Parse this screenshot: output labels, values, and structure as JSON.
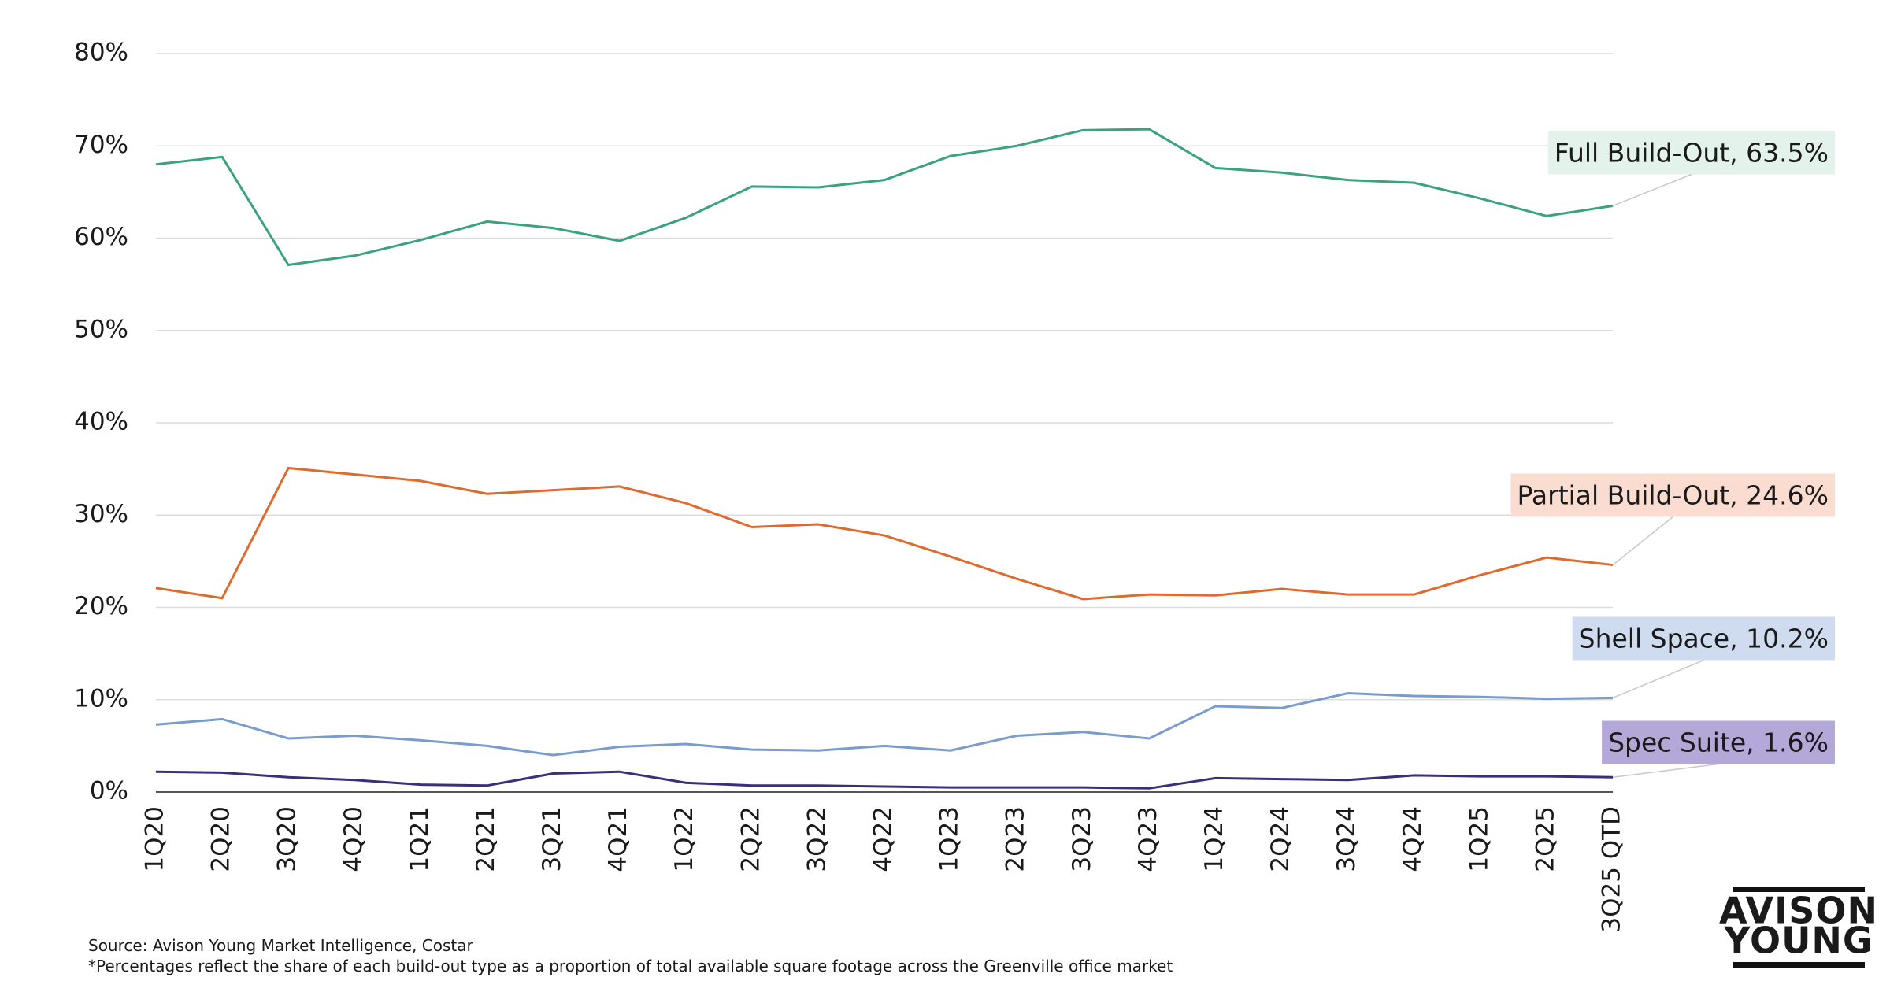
{
  "chart_data": {
    "type": "line",
    "categories": [
      "1Q20",
      "2Q20",
      "3Q20",
      "4Q20",
      "1Q21",
      "2Q21",
      "3Q21",
      "4Q21",
      "1Q22",
      "2Q22",
      "3Q22",
      "4Q22",
      "1Q23",
      "2Q23",
      "3Q23",
      "4Q23",
      "1Q24",
      "2Q24",
      "3Q24",
      "4Q24",
      "1Q25",
      "2Q25",
      "3Q25 QTD"
    ],
    "ylim": [
      0,
      80
    ],
    "yticks": [
      {
        "value": 0,
        "label": "0%"
      },
      {
        "value": 10,
        "label": "10%"
      },
      {
        "value": 20,
        "label": "20%"
      },
      {
        "value": 30,
        "label": "30%"
      },
      {
        "value": 40,
        "label": "40%"
      },
      {
        "value": 50,
        "label": "50%"
      },
      {
        "value": 60,
        "label": "60%"
      },
      {
        "value": 70,
        "label": "70%"
      },
      {
        "value": 80,
        "label": "80%"
      }
    ],
    "grid": true,
    "series": [
      {
        "label": "Full Build-Out, 63.5%",
        "color": "#3aa37e",
        "label_background": "#e3f3ec",
        "values": [
          68.0,
          68.8,
          57.1,
          58.1,
          59.8,
          61.8,
          61.1,
          59.7,
          62.2,
          65.6,
          65.5,
          66.3,
          68.9,
          70.0,
          71.7,
          71.8,
          67.6,
          67.1,
          66.3,
          66.0,
          64.3,
          62.4,
          63.5
        ]
      },
      {
        "label": "Partial Build-Out, 24.6%",
        "color": "#e06a2e",
        "label_background": "#fbdcd0",
        "values": [
          22.1,
          21.0,
          35.1,
          34.4,
          33.7,
          32.3,
          32.7,
          33.1,
          31.3,
          28.7,
          29.0,
          27.8,
          25.5,
          23.1,
          20.9,
          21.4,
          21.3,
          22.0,
          21.4,
          21.4,
          23.5,
          25.4,
          24.6
        ]
      },
      {
        "label": "Shell Space, 10.2%",
        "color": "#7a9ccc",
        "label_background": "#cfdcf0",
        "values": [
          7.3,
          7.9,
          5.8,
          6.1,
          5.6,
          5.0,
          4.0,
          4.9,
          5.2,
          4.6,
          4.5,
          5.0,
          4.5,
          6.1,
          6.5,
          5.8,
          9.3,
          9.1,
          10.7,
          10.4,
          10.3,
          10.1,
          10.2
        ]
      },
      {
        "label": "Spec Suite, 1.6%",
        "color": "#3b2f7a",
        "label_background": "#b4a8d8",
        "values": [
          2.2,
          2.1,
          1.6,
          1.3,
          0.8,
          0.7,
          2.0,
          2.2,
          1.0,
          0.7,
          0.7,
          0.6,
          0.5,
          0.5,
          0.5,
          0.4,
          1.5,
          1.4,
          1.3,
          1.8,
          1.7,
          1.7,
          1.6
        ]
      }
    ]
  },
  "footer": {
    "source": "Source: Avison Young Market Intelligence, Costar",
    "note": "*Percentages reflect the share of each build-out type as a proportion of total available square footage across the Greenville office market"
  },
  "logo": {
    "line1": "AVISON",
    "line2": "YOUNG"
  }
}
